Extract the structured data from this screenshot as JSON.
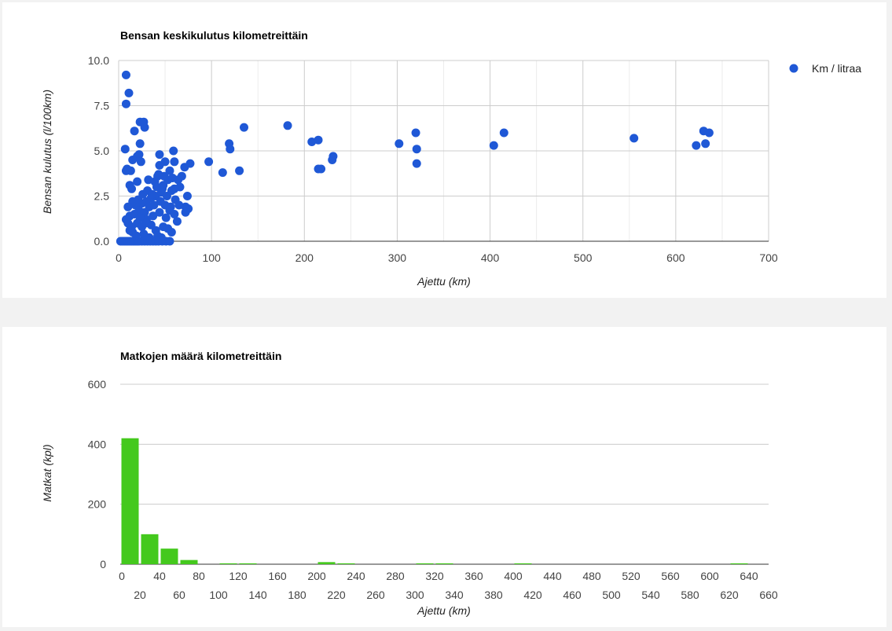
{
  "colors": {
    "scatter": "#1f58d6",
    "bars": "#44c91d",
    "grid": "#cccccc",
    "baseline": "#333333"
  },
  "chart_data": [
    {
      "type": "scatter",
      "title": "Bensan keskikulutus kilometreittäin",
      "xlabel": "Ajettu (km)",
      "ylabel": "Bensan kulutus (l/100km)",
      "xlim": [
        0,
        700
      ],
      "ylim": [
        0,
        10
      ],
      "x_ticks": [
        "0",
        "100",
        "200",
        "300",
        "400",
        "500",
        "600",
        "700"
      ],
      "y_ticks": [
        "0.0",
        "2.5",
        "5.0",
        "7.5",
        "10.0"
      ],
      "legend": "right",
      "series": [
        {
          "name": "Km / litraa",
          "points": [
            [
              8,
              9.2
            ],
            [
              11,
              8.2
            ],
            [
              8,
              7.6
            ],
            [
              23,
              6.6
            ],
            [
              27,
              6.6
            ],
            [
              17,
              6.1
            ],
            [
              28,
              6.3
            ],
            [
              7,
              5.1
            ],
            [
              23,
              5.4
            ],
            [
              44,
              4.8
            ],
            [
              59,
              5.0
            ],
            [
              22,
              4.8
            ],
            [
              20,
              4.7
            ],
            [
              15,
              4.5
            ],
            [
              24,
              4.4
            ],
            [
              9,
              4.0
            ],
            [
              13,
              3.9
            ],
            [
              8,
              3.9
            ],
            [
              44,
              4.2
            ],
            [
              50,
              4.4
            ],
            [
              60,
              4.4
            ],
            [
              77,
              4.3
            ],
            [
              71,
              4.1
            ],
            [
              12,
              3.1
            ],
            [
              14,
              2.9
            ],
            [
              20,
              3.3
            ],
            [
              32,
              3.4
            ],
            [
              42,
              3.6
            ],
            [
              48,
              3.1
            ],
            [
              53,
              3.4
            ],
            [
              58,
              3.5
            ],
            [
              64,
              3.4
            ],
            [
              68,
              3.6
            ],
            [
              66,
              3.0
            ],
            [
              60,
              2.9
            ],
            [
              47,
              2.9
            ],
            [
              74,
              2.5
            ],
            [
              72,
              1.9
            ],
            [
              75,
              1.8
            ],
            [
              72,
              1.6
            ],
            [
              40,
              2.5
            ],
            [
              35,
              2.4
            ],
            [
              30,
              2.2
            ],
            [
              25,
              2.1
            ],
            [
              18,
              2.0
            ],
            [
              15,
              2.2
            ],
            [
              10,
              1.9
            ],
            [
              12,
              1.4
            ],
            [
              8,
              1.2
            ],
            [
              22,
              1.7
            ],
            [
              28,
              1.6
            ],
            [
              33,
              1.9
            ],
            [
              38,
              2.0
            ],
            [
              45,
              2.2
            ],
            [
              50,
              2.0
            ],
            [
              55,
              1.7
            ],
            [
              60,
              1.5
            ],
            [
              63,
              1.1
            ],
            [
              20,
              1.0
            ],
            [
              25,
              0.8
            ],
            [
              30,
              1.2
            ],
            [
              35,
              0.9
            ],
            [
              40,
              0.6
            ],
            [
              48,
              0.8
            ],
            [
              53,
              0.7
            ],
            [
              57,
              0.5
            ],
            [
              15,
              0.5
            ],
            [
              19,
              0.3
            ],
            [
              27,
              0.4
            ],
            [
              33,
              0.2
            ],
            [
              42,
              0.3
            ],
            [
              46,
              0.2
            ],
            [
              12,
              0.6
            ],
            [
              10,
              1.0
            ],
            [
              14,
              0.8
            ],
            [
              17,
              1.5
            ],
            [
              23,
              1.3
            ],
            [
              29,
              1.0
            ],
            [
              37,
              1.4
            ],
            [
              44,
              1.6
            ],
            [
              51,
              1.3
            ],
            [
              56,
              1.9
            ],
            [
              61,
              2.3
            ],
            [
              65,
              2.0
            ],
            [
              21,
              2.3
            ],
            [
              26,
              2.6
            ],
            [
              31,
              2.8
            ],
            [
              36,
              2.6
            ],
            [
              41,
              3.0
            ],
            [
              46,
              2.7
            ],
            [
              52,
              2.5
            ],
            [
              57,
              2.8
            ],
            [
              43,
              3.7
            ],
            [
              39,
              3.3
            ],
            [
              55,
              3.9
            ],
            [
              49,
              3.6
            ],
            [
              2,
              0
            ],
            [
              4,
              0
            ],
            [
              6,
              0
            ],
            [
              8,
              0
            ],
            [
              10,
              0
            ],
            [
              12,
              0
            ],
            [
              14,
              0
            ],
            [
              16,
              0
            ],
            [
              18,
              0
            ],
            [
              20,
              0
            ],
            [
              22,
              0
            ],
            [
              25,
              0
            ],
            [
              28,
              0
            ],
            [
              31,
              0
            ],
            [
              34,
              0
            ],
            [
              37,
              0
            ],
            [
              40,
              0
            ],
            [
              43,
              0
            ],
            [
              47,
              0
            ],
            [
              51,
              0
            ],
            [
              55,
              0
            ],
            [
              97,
              4.4
            ],
            [
              112,
              3.8
            ],
            [
              119,
              5.4
            ],
            [
              120,
              5.1
            ],
            [
              130,
              3.9
            ],
            [
              135,
              6.3
            ],
            [
              182,
              6.4
            ],
            [
              208,
              5.5
            ],
            [
              215,
              5.6
            ],
            [
              215,
              4.0
            ],
            [
              218,
              4.0
            ],
            [
              230,
              4.5
            ],
            [
              231,
              4.7
            ],
            [
              302,
              5.4
            ],
            [
              320,
              6.0
            ],
            [
              321,
              5.1
            ],
            [
              321,
              4.3
            ],
            [
              404,
              5.3
            ],
            [
              415,
              6.0
            ],
            [
              555,
              5.7
            ],
            [
              622,
              5.3
            ],
            [
              630,
              6.1
            ],
            [
              632,
              5.4
            ],
            [
              636,
              6.0
            ]
          ]
        }
      ]
    },
    {
      "type": "bar",
      "title": "Matkojen määrä kilometreittäin",
      "xlabel": "Ajettu (km)",
      "ylabel": "Matkat (kpl)",
      "ylim": [
        0,
        600
      ],
      "y_ticks": [
        "0",
        "200",
        "400",
        "600"
      ],
      "x_ticks": [
        "0",
        "20",
        "40",
        "60",
        "80",
        "100",
        "120",
        "140",
        "160",
        "180",
        "200",
        "220",
        "240",
        "260",
        "280",
        "300",
        "320",
        "340",
        "360",
        "380",
        "400",
        "420",
        "440",
        "460",
        "480",
        "500",
        "520",
        "540",
        "560",
        "580",
        "600",
        "620",
        "640",
        "660"
      ],
      "bin_width": 20,
      "bins": [
        0,
        20,
        40,
        60,
        100,
        120,
        200,
        220,
        300,
        320,
        400,
        620
      ],
      "values": [
        420,
        100,
        52,
        14,
        3,
        3,
        7,
        3,
        3,
        3,
        3,
        3
      ]
    }
  ]
}
